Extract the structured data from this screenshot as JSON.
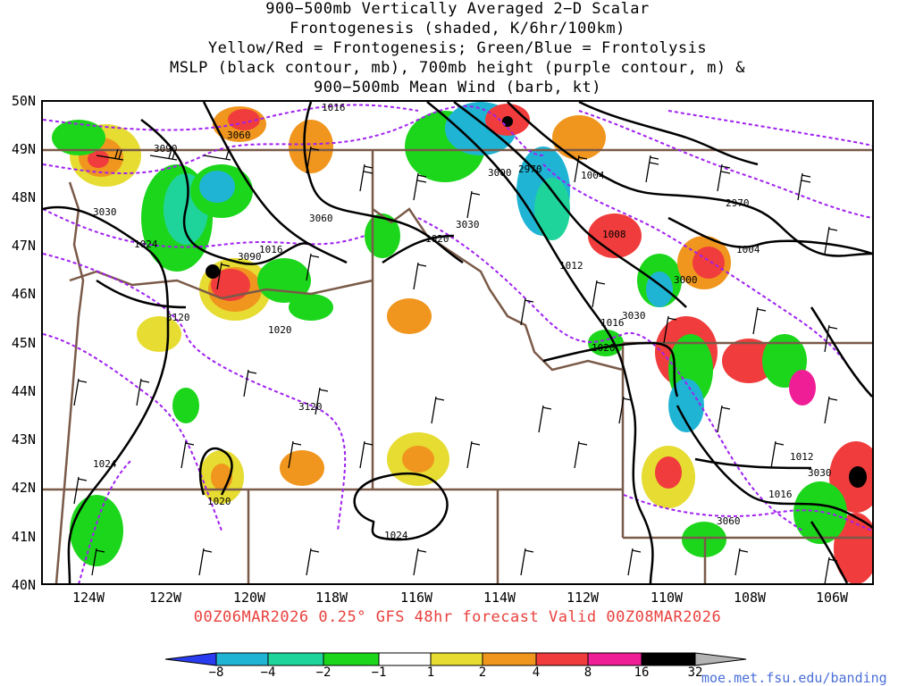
{
  "title": {
    "line1": "900−500mb Vertically Averaged 2−D Scalar",
    "line2": "Frontogenesis (shaded, K/6hr/100km)",
    "line3": "Yellow/Red = Frontogenesis;  Green/Blue = Frontolysis",
    "line4": "MSLP (black contour, mb), 700mb height (purple contour, m) &",
    "line5": "900−500mb Mean Wind (barb, kt)"
  },
  "lat_labels": [
    "50N",
    "49N",
    "48N",
    "47N",
    "46N",
    "45N",
    "44N",
    "43N",
    "42N",
    "41N",
    "40N"
  ],
  "lon_labels": [
    "124W",
    "122W",
    "120W",
    "118W",
    "116W",
    "114W",
    "112W",
    "110W",
    "108W",
    "106W"
  ],
  "valid_text": "00Z06MAR2026 0.25° GFS 48hr forecast Valid 00Z08MAR2026",
  "colorbar": {
    "labels": [
      "−8",
      "−4",
      "−2",
      "−1",
      "1",
      "2",
      "4",
      "8",
      "16",
      "32"
    ],
    "colors": [
      "#2a3cf0",
      "#1fb4d4",
      "#1fd49a",
      "#1cd61c",
      "#ffffff",
      "#e6dc32",
      "#f0961e",
      "#f03c3c",
      "#f01e96",
      "#000000",
      "#b4b4b4"
    ]
  },
  "credit": "moe.met.fsu.edu/banding",
  "contour_labels": {
    "mslp": [
      "1016",
      "1024",
      "1016",
      "1020",
      "1020",
      "1004",
      "1008",
      "1012",
      "1004",
      "1016",
      "1020",
      "1024",
      "1020",
      "1024",
      "1012",
      "1016"
    ],
    "height": [
      "3060",
      "3030",
      "3090",
      "3060",
      "3090",
      "3120",
      "3000",
      "2970",
      "3030",
      "2970",
      "3000",
      "3030",
      "3120",
      "3030",
      "3060"
    ]
  },
  "colors": {
    "mslp": "#000000",
    "height": "#a020f0",
    "border": "#7a5a48",
    "valid": "#e8413d",
    "credit": "#4a6fd8"
  }
}
